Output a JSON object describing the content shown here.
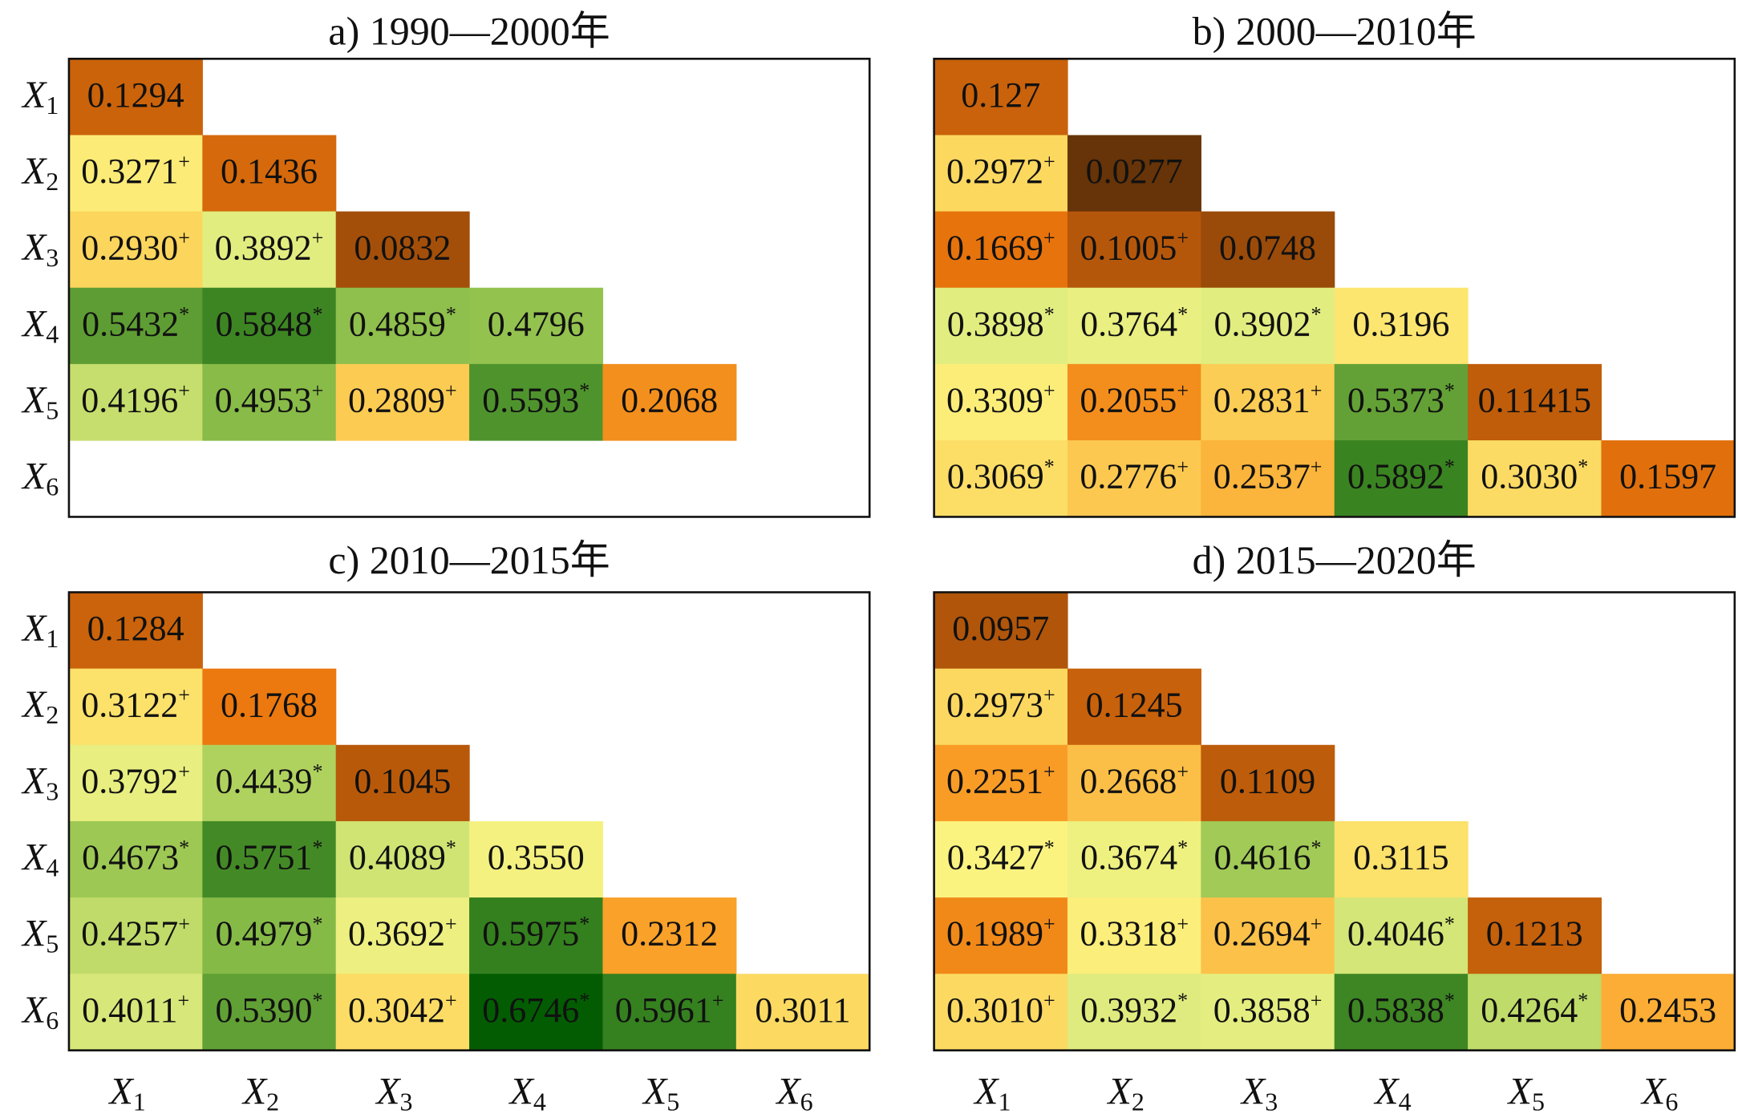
{
  "chart_data": [
    {
      "type": "heatmap",
      "title": "a) 1990—2000年",
      "row_labels": [
        {
          "var": "X",
          "sub": "1"
        },
        {
          "var": "X",
          "sub": "2"
        },
        {
          "var": "X",
          "sub": "3"
        },
        {
          "var": "X",
          "sub": "4"
        },
        {
          "var": "X",
          "sub": "5"
        },
        {
          "var": "X",
          "sub": "6"
        }
      ],
      "col_labels": [],
      "cells": [
        [
          {
            "v": "0.1294",
            "m": ""
          }
        ],
        [
          {
            "v": "0.3271",
            "m": "+"
          },
          {
            "v": "0.1436",
            "m": ""
          }
        ],
        [
          {
            "v": "0.2930",
            "m": "+"
          },
          {
            "v": "0.3892",
            "m": "+"
          },
          {
            "v": "0.0832",
            "m": ""
          }
        ],
        [
          {
            "v": "0.5432",
            "m": "*"
          },
          {
            "v": "0.5848",
            "m": "*"
          },
          {
            "v": "0.4859",
            "m": "*"
          },
          {
            "v": "0.4796",
            "m": ""
          }
        ],
        [
          {
            "v": "0.4196",
            "m": "+"
          },
          {
            "v": "0.4953",
            "m": "+"
          },
          {
            "v": "0.2809",
            "m": "+"
          },
          {
            "v": "0.5593",
            "m": "*"
          },
          {
            "v": "0.2068",
            "m": ""
          }
        ],
        []
      ]
    },
    {
      "type": "heatmap",
      "title": "b) 2000—2010年",
      "row_labels": [],
      "col_labels": [],
      "cells": [
        [
          {
            "v": "0.127",
            "m": ""
          }
        ],
        [
          {
            "v": "0.2972",
            "m": "+"
          },
          {
            "v": "0.0277",
            "m": ""
          }
        ],
        [
          {
            "v": "0.1669",
            "m": "+"
          },
          {
            "v": "0.1005",
            "m": "+"
          },
          {
            "v": "0.0748",
            "m": ""
          }
        ],
        [
          {
            "v": "0.3898",
            "m": "*"
          },
          {
            "v": "0.3764",
            "m": "*"
          },
          {
            "v": "0.3902",
            "m": "*"
          },
          {
            "v": "0.3196",
            "m": ""
          }
        ],
        [
          {
            "v": "0.3309",
            "m": "+"
          },
          {
            "v": "0.2055",
            "m": "+"
          },
          {
            "v": "0.2831",
            "m": "+"
          },
          {
            "v": "0.5373",
            "m": "*"
          },
          {
            "v": "0.11415",
            "m": ""
          }
        ],
        [
          {
            "v": "0.3069",
            "m": "*"
          },
          {
            "v": "0.2776",
            "m": "+"
          },
          {
            "v": "0.2537",
            "m": "+"
          },
          {
            "v": "0.5892",
            "m": "*"
          },
          {
            "v": "0.3030",
            "m": "*"
          },
          {
            "v": "0.1597",
            "m": ""
          }
        ]
      ]
    },
    {
      "type": "heatmap",
      "title": "c) 2010—2015年",
      "row_labels": [
        {
          "var": "X",
          "sub": "1"
        },
        {
          "var": "X",
          "sub": "2"
        },
        {
          "var": "X",
          "sub": "3"
        },
        {
          "var": "X",
          "sub": "4"
        },
        {
          "var": "X",
          "sub": "5"
        },
        {
          "var": "X",
          "sub": "6"
        }
      ],
      "col_labels": [
        {
          "var": "X",
          "sub": "1"
        },
        {
          "var": "X",
          "sub": "2"
        },
        {
          "var": "X",
          "sub": "3"
        },
        {
          "var": "X",
          "sub": "4"
        },
        {
          "var": "X",
          "sub": "5"
        },
        {
          "var": "X",
          "sub": "6"
        }
      ],
      "cells": [
        [
          {
            "v": "0.1284",
            "m": ""
          }
        ],
        [
          {
            "v": "0.3122",
            "m": "+"
          },
          {
            "v": "0.1768",
            "m": ""
          }
        ],
        [
          {
            "v": "0.3792",
            "m": "+"
          },
          {
            "v": "0.4439",
            "m": "*"
          },
          {
            "v": "0.1045",
            "m": ""
          }
        ],
        [
          {
            "v": "0.4673",
            "m": "*"
          },
          {
            "v": "0.5751",
            "m": "*"
          },
          {
            "v": "0.4089",
            "m": "*"
          },
          {
            "v": "0.3550",
            "m": ""
          }
        ],
        [
          {
            "v": "0.4257",
            "m": "+"
          },
          {
            "v": "0.4979",
            "m": "*"
          },
          {
            "v": "0.3692",
            "m": "+"
          },
          {
            "v": "0.5975",
            "m": "*"
          },
          {
            "v": "0.2312",
            "m": ""
          }
        ],
        [
          {
            "v": "0.4011",
            "m": "+"
          },
          {
            "v": "0.5390",
            "m": "*"
          },
          {
            "v": "0.3042",
            "m": "+"
          },
          {
            "v": "0.6746",
            "m": "*"
          },
          {
            "v": "0.5961",
            "m": "+"
          },
          {
            "v": "0.3011",
            "m": ""
          }
        ]
      ]
    },
    {
      "type": "heatmap",
      "title": "d) 2015—2020年",
      "row_labels": [],
      "col_labels": [
        {
          "var": "X",
          "sub": "1"
        },
        {
          "var": "X",
          "sub": "2"
        },
        {
          "var": "X",
          "sub": "3"
        },
        {
          "var": "X",
          "sub": "4"
        },
        {
          "var": "X",
          "sub": "5"
        },
        {
          "var": "X",
          "sub": "6"
        }
      ],
      "cells": [
        [
          {
            "v": "0.0957",
            "m": ""
          }
        ],
        [
          {
            "v": "0.2973",
            "m": "+"
          },
          {
            "v": "0.1245",
            "m": ""
          }
        ],
        [
          {
            "v": "0.2251",
            "m": "+"
          },
          {
            "v": "0.2668",
            "m": "+"
          },
          {
            "v": "0.1109",
            "m": ""
          }
        ],
        [
          {
            "v": "0.3427",
            "m": "*"
          },
          {
            "v": "0.3674",
            "m": "*"
          },
          {
            "v": "0.4616",
            "m": "*"
          },
          {
            "v": "0.3115",
            "m": ""
          }
        ],
        [
          {
            "v": "0.1989",
            "m": "+"
          },
          {
            "v": "0.3318",
            "m": "+"
          },
          {
            "v": "0.2694",
            "m": "+"
          },
          {
            "v": "0.4046",
            "m": "*"
          },
          {
            "v": "0.1213",
            "m": ""
          }
        ],
        [
          {
            "v": "0.3010",
            "m": "+"
          },
          {
            "v": "0.3932",
            "m": "*"
          },
          {
            "v": "0.3858",
            "m": "+"
          },
          {
            "v": "0.5838",
            "m": "*"
          },
          {
            "v": "0.4264",
            "m": "*"
          },
          {
            "v": "0.2453",
            "m": ""
          }
        ]
      ]
    }
  ]
}
